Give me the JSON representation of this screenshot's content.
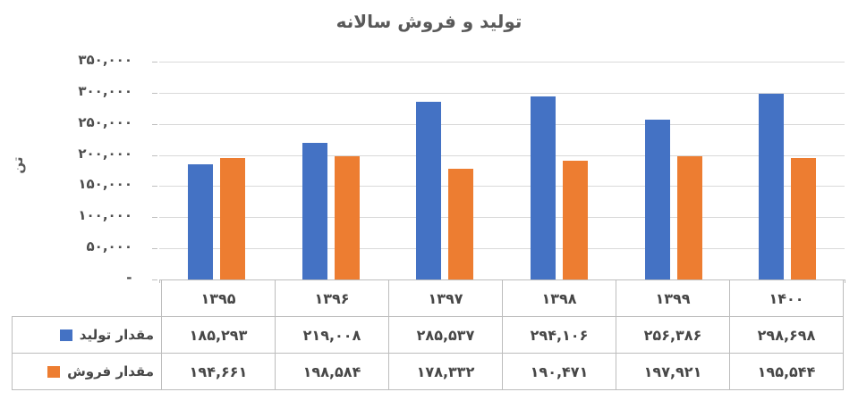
{
  "title": "تولید و فروش سالانه",
  "colors": {
    "production_blue": "#4472C4",
    "sales_orange": "#ED7D31",
    "gridline_gray": "#D9D9D9",
    "axis_gray": "#BFBFBF",
    "text_gray": "#595959",
    "table_border_gray": "#BDBDBD"
  },
  "chart_data": {
    "type": "bar",
    "title": "تولید و فروش سالانه",
    "ylabel": "تن",
    "xlabel": "",
    "categories": [
      "۱۳۹۵",
      "۱۳۹۶",
      "۱۳۹۷",
      "۱۳۹۸",
      "۱۳۹۹",
      "۱۴۰۰"
    ],
    "categories_western": [
      1395,
      1396,
      1397,
      1398,
      1399,
      1400
    ],
    "series": [
      {
        "name": "مقدار تولید",
        "name_en": "production",
        "color": "#4472C4",
        "values": [
          185293,
          219008,
          285537,
          294106,
          256386,
          298698
        ],
        "value_labels": [
          "۱۸۵,۲۹۳",
          "۲۱۹,۰۰۸",
          "۲۸۵,۵۳۷",
          "۲۹۴,۱۰۶",
          "۲۵۶,۳۸۶",
          "۲۹۸,۶۹۸"
        ]
      },
      {
        "name": "مقدار فروش",
        "name_en": "sales",
        "color": "#ED7D31",
        "values": [
          194661,
          198584,
          178332,
          190471,
          197921,
          195544
        ],
        "value_labels": [
          "۱۹۴,۶۶۱",
          "۱۹۸,۵۸۴",
          "۱۷۸,۳۳۲",
          "۱۹۰,۴۷۱",
          "۱۹۷,۹۲۱",
          "۱۹۵,۵۴۴"
        ]
      }
    ],
    "ylim": [
      0,
      350000
    ],
    "ytick_step": 50000,
    "ytick_labels": [
      "۳۵۰,۰۰۰",
      "۳۰۰,۰۰۰",
      "۲۵۰,۰۰۰",
      "۲۰۰,۰۰۰",
      "۱۵۰,۰۰۰",
      "۱۰۰,۰۰۰",
      "۵۰,۰۰۰",
      "-"
    ],
    "grid": true,
    "legend_position": "data-table-left"
  }
}
